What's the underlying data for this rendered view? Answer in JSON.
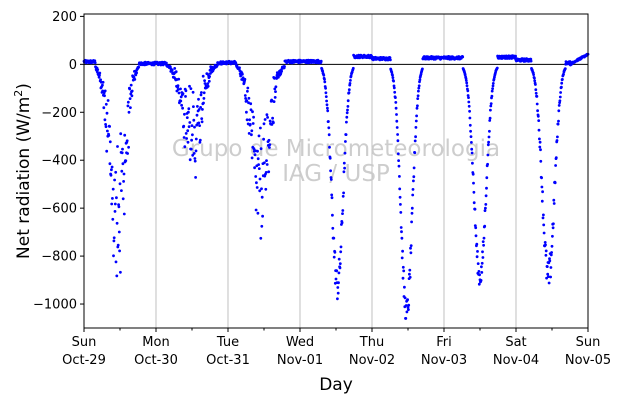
{
  "chart_data": {
    "type": "scatter",
    "xlabel": "Day",
    "ylabel_main": "Net radiation (W/m",
    "ylabel_sup": "2",
    "ylabel_close": ")",
    "ylim": [
      -1100,
      210
    ],
    "yticks": [
      200,
      0,
      -200,
      -400,
      -600,
      -800,
      -1000
    ],
    "ytick_labels": [
      "200",
      "0",
      "−200",
      "−400",
      "−600",
      "−800",
      "−1000"
    ],
    "xlim": [
      0,
      7
    ],
    "xticks": [
      {
        "day": "Sun",
        "date": "Oct-29"
      },
      {
        "day": "Mon",
        "date": "Oct-30"
      },
      {
        "day": "Tue",
        "date": "Oct-31"
      },
      {
        "day": "Wed",
        "date": "Nov-01"
      },
      {
        "day": "Thu",
        "date": "Nov-02"
      },
      {
        "day": "Fri",
        "date": "Nov-03"
      },
      {
        "day": "Sat",
        "date": "Nov-04"
      },
      {
        "day": "Sun",
        "date": "Nov-05"
      }
    ],
    "grid_x": true,
    "zero_line": true,
    "series": [
      {
        "color": "#0000ff",
        "days": [
          {
            "peak_x": 0.46,
            "peak_y": -920,
            "width": 0.19,
            "noise": 180,
            "pre": 18,
            "post": 5,
            "cloudy": true
          },
          {
            "peak_x": 1.5,
            "peak_y": -440,
            "width": 0.22,
            "noise": 120,
            "pre": 5,
            "post": 10,
            "cloudy": true
          },
          {
            "peak_x": 2.45,
            "peak_y": -680,
            "width": 0.21,
            "noise": 170,
            "pre": 12,
            "post": 20,
            "cloudy": true
          },
          {
            "peak_x": 3.52,
            "peak_y": -920,
            "width": 0.14,
            "noise": 70,
            "pre": 20,
            "post": 55,
            "cloudy": false
          },
          {
            "peak_x": 4.48,
            "peak_y": -1040,
            "width": 0.14,
            "noise": 60,
            "pre": 40,
            "post": 45,
            "cloudy": false
          },
          {
            "peak_x": 5.5,
            "peak_y": -890,
            "width": 0.15,
            "noise": 40,
            "pre": 45,
            "post": 50,
            "cloudy": false
          },
          {
            "peak_x": 6.45,
            "peak_y": -890,
            "width": 0.15,
            "noise": 70,
            "pre": 30,
            "post": 10,
            "cloudy": false
          }
        ],
        "night_end_y": 42
      }
    ]
  },
  "watermark": {
    "line1": "Grupo de Micrometeorologia",
    "line2": "IAG / USP"
  }
}
